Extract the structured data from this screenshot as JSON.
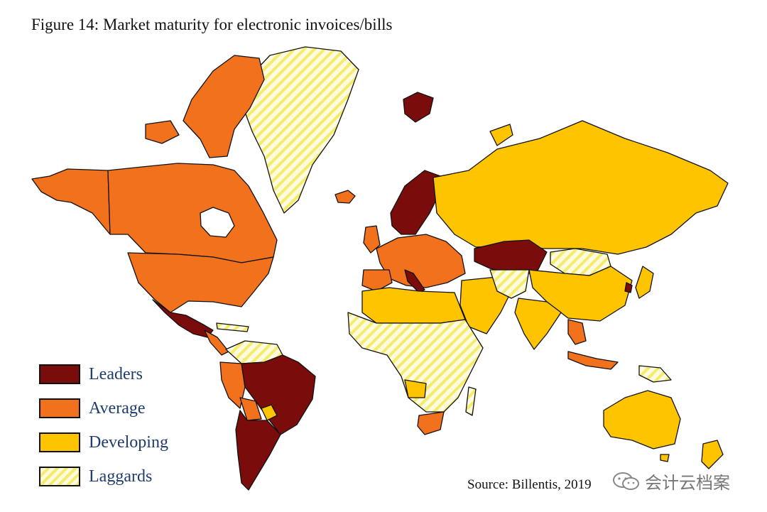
{
  "title": "Figure 14: Market maturity for electronic invoices/bills",
  "legend": [
    {
      "label": "Leaders",
      "key": "leaders"
    },
    {
      "label": "Average",
      "key": "average"
    },
    {
      "label": "Developing",
      "key": "developing"
    },
    {
      "label": "Laggards",
      "key": "laggards"
    }
  ],
  "colors": {
    "leaders": "#7a0c0c",
    "average": "#f2711c",
    "developing": "#ffc400",
    "laggards_stripe": "#f4ec6a",
    "laggards_bg": "#fffbe0",
    "border": "#111111"
  },
  "source": "Source: Billentis,  2019",
  "watermark": {
    "text": "会计云档案",
    "icon": "wechat-icon"
  }
}
